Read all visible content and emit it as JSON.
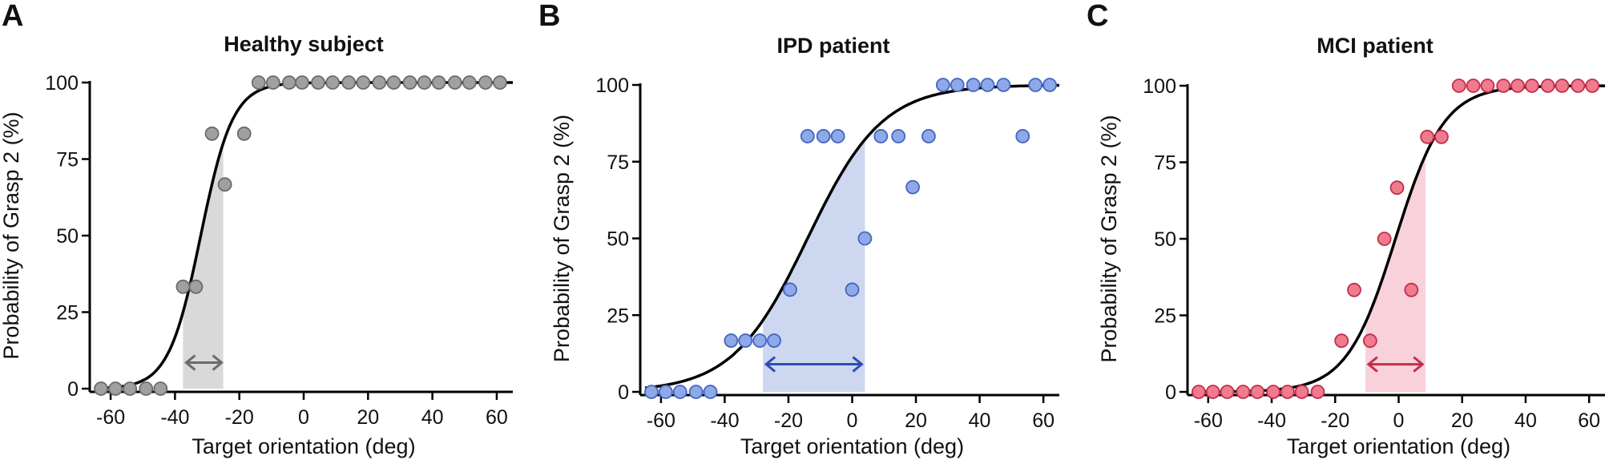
{
  "figure": {
    "panels": [
      {
        "letter": "A",
        "title": "Healthy subject",
        "xlabel": "Target orientation (deg)",
        "ylabel": "Probability of Grasp 2 (%)",
        "x_ticks": [
          "-60",
          "-40",
          "-20",
          "0",
          "20",
          "40",
          "60"
        ],
        "y_ticks": [
          "0",
          "25",
          "50",
          "75",
          "100"
        ]
      },
      {
        "letter": "B",
        "title": "IPD patient",
        "xlabel": "Target orientation (deg)",
        "ylabel": "Probability of Grasp 2 (%)",
        "x_ticks": [
          "-60",
          "-40",
          "-20",
          "0",
          "20",
          "40",
          "60"
        ],
        "y_ticks": [
          "0",
          "25",
          "50",
          "75",
          "100"
        ]
      },
      {
        "letter": "C",
        "title": "MCI patient",
        "xlabel": "Target orientation (deg)",
        "ylabel": "Probability of Grasp 2 (%)",
        "x_ticks": [
          "-60",
          "-40",
          "-20",
          "0",
          "20",
          "40",
          "60"
        ],
        "y_ticks": [
          "0",
          "25",
          "50",
          "75",
          "100"
        ]
      }
    ]
  },
  "chart_data": [
    {
      "type": "scatter",
      "title": "Healthy subject",
      "xlabel": "Target orientation (deg)",
      "ylabel": "Probability of Grasp 2 (%)",
      "xlim": [
        -65,
        65
      ],
      "ylim": [
        0,
        100
      ],
      "x_ticks": [
        -60,
        -40,
        -20,
        0,
        20,
        40,
        60
      ],
      "y_ticks": [
        0,
        25,
        50,
        75,
        100
      ],
      "grid": false,
      "colors": {
        "marker_fill": "#a0a0a0",
        "marker_edge": "#6b6b6b",
        "band": "#d9d9d9",
        "arrow": "#6b6b6b",
        "curve": "#000000"
      },
      "points": [
        {
          "x": -63,
          "y": 0
        },
        {
          "x": -58.5,
          "y": 0
        },
        {
          "x": -54,
          "y": 0
        },
        {
          "x": -49,
          "y": 0
        },
        {
          "x": -44.5,
          "y": 0
        },
        {
          "x": -37.5,
          "y": 33.3
        },
        {
          "x": -33.5,
          "y": 33.3
        },
        {
          "x": -28.5,
          "y": 83.3
        },
        {
          "x": -24.5,
          "y": 66.7
        },
        {
          "x": -18.5,
          "y": 83.3
        },
        {
          "x": -14,
          "y": 100
        },
        {
          "x": -9.5,
          "y": 100
        },
        {
          "x": -4.5,
          "y": 100
        },
        {
          "x": -0.5,
          "y": 100
        },
        {
          "x": 4.5,
          "y": 100
        },
        {
          "x": 9,
          "y": 100
        },
        {
          "x": 14,
          "y": 100
        },
        {
          "x": 18.5,
          "y": 100
        },
        {
          "x": 23.5,
          "y": 100
        },
        {
          "x": 28,
          "y": 100
        },
        {
          "x": 33,
          "y": 100
        },
        {
          "x": 37.5,
          "y": 100
        },
        {
          "x": 42,
          "y": 100
        },
        {
          "x": 47,
          "y": 100
        },
        {
          "x": 51.5,
          "y": 100
        },
        {
          "x": 56.5,
          "y": 100
        },
        {
          "x": 61,
          "y": 100
        }
      ],
      "fit": {
        "midpoint": -32,
        "slope": 0.2
      },
      "band": {
        "x_start": -37.5,
        "x_end": -25
      },
      "arrow": {
        "x_start": -36.5,
        "x_end": -25.5,
        "y": 8.5
      }
    },
    {
      "type": "scatter",
      "title": "IPD patient",
      "xlabel": "Target orientation (deg)",
      "ylabel": "Probability of Grasp 2 (%)",
      "xlim": [
        -65,
        65
      ],
      "ylim": [
        0,
        100
      ],
      "x_ticks": [
        -60,
        -40,
        -20,
        0,
        20,
        40,
        60
      ],
      "y_ticks": [
        0,
        25,
        50,
        75,
        100
      ],
      "grid": false,
      "colors": {
        "marker_fill": "#8fa8e8",
        "marker_edge": "#4466c0",
        "band": "#cdd8f0",
        "arrow": "#2e4db3",
        "curve": "#000000"
      },
      "points": [
        {
          "x": -63,
          "y": 0
        },
        {
          "x": -58.5,
          "y": 0
        },
        {
          "x": -54,
          "y": 0
        },
        {
          "x": -49,
          "y": 0
        },
        {
          "x": -44.5,
          "y": 0
        },
        {
          "x": -38,
          "y": 16.7
        },
        {
          "x": -33.5,
          "y": 16.7
        },
        {
          "x": -29,
          "y": 16.7
        },
        {
          "x": -24.5,
          "y": 16.7
        },
        {
          "x": -19.5,
          "y": 33.3
        },
        {
          "x": -14,
          "y": 83.3
        },
        {
          "x": -9,
          "y": 83.3
        },
        {
          "x": -4.5,
          "y": 83.3
        },
        {
          "x": 0,
          "y": 33.3
        },
        {
          "x": 4,
          "y": 50
        },
        {
          "x": 9,
          "y": 83.3
        },
        {
          "x": 14.5,
          "y": 83.3
        },
        {
          "x": 19,
          "y": 66.7
        },
        {
          "x": 24,
          "y": 83.3
        },
        {
          "x": 28.5,
          "y": 100
        },
        {
          "x": 33,
          "y": 100
        },
        {
          "x": 38,
          "y": 100
        },
        {
          "x": 42.5,
          "y": 100
        },
        {
          "x": 47.5,
          "y": 100
        },
        {
          "x": 53.5,
          "y": 83.3
        },
        {
          "x": 57.5,
          "y": 100
        },
        {
          "x": 62,
          "y": 100
        }
      ],
      "fit": {
        "midpoint": -14,
        "slope": 0.085
      },
      "band": {
        "x_start": -28,
        "x_end": 4
      },
      "arrow": {
        "x_start": -27,
        "x_end": 3,
        "y": 9
      }
    },
    {
      "type": "scatter",
      "title": "MCI patient",
      "xlabel": "Target orientation (deg)",
      "ylabel": "Probability of Grasp 2 (%)",
      "xlim": [
        -65,
        65
      ],
      "ylim": [
        0,
        100
      ],
      "x_ticks": [
        -60,
        -40,
        -20,
        0,
        20,
        40,
        60
      ],
      "y_ticks": [
        0,
        25,
        50,
        75,
        100
      ],
      "grid": false,
      "colors": {
        "marker_fill": "#f07a8e",
        "marker_edge": "#c0304a",
        "band": "#f9d1db",
        "arrow": "#c0304a",
        "curve": "#000000"
      },
      "points": [
        {
          "x": -63,
          "y": 0
        },
        {
          "x": -58.5,
          "y": 0
        },
        {
          "x": -54,
          "y": 0
        },
        {
          "x": -49,
          "y": 0
        },
        {
          "x": -44.5,
          "y": 0
        },
        {
          "x": -39.5,
          "y": 0
        },
        {
          "x": -35,
          "y": 0
        },
        {
          "x": -30.5,
          "y": 0
        },
        {
          "x": -25.5,
          "y": 0
        },
        {
          "x": -18,
          "y": 16.7
        },
        {
          "x": -14,
          "y": 33.3
        },
        {
          "x": -9,
          "y": 16.7
        },
        {
          "x": -4.5,
          "y": 50
        },
        {
          "x": -0.5,
          "y": 66.7
        },
        {
          "x": 4,
          "y": 33.3
        },
        {
          "x": 9,
          "y": 83.3
        },
        {
          "x": 13.5,
          "y": 83.3
        },
        {
          "x": 19,
          "y": 100
        },
        {
          "x": 23.5,
          "y": 100
        },
        {
          "x": 28,
          "y": 100
        },
        {
          "x": 33,
          "y": 100
        },
        {
          "x": 37.5,
          "y": 100
        },
        {
          "x": 42,
          "y": 100
        },
        {
          "x": 47,
          "y": 100
        },
        {
          "x": 51.5,
          "y": 100
        },
        {
          "x": 56.5,
          "y": 100
        },
        {
          "x": 61,
          "y": 100
        }
      ],
      "fit": {
        "midpoint": -1,
        "slope": 0.13
      },
      "band": {
        "x_start": -10.5,
        "x_end": 8.5
      },
      "arrow": {
        "x_start": -9.5,
        "x_end": 7.5,
        "y": 9
      }
    }
  ]
}
